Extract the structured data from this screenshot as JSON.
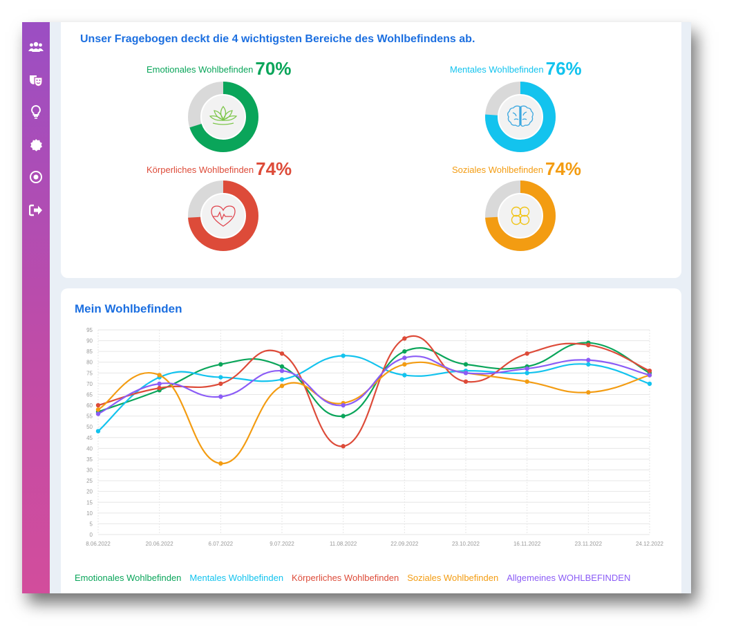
{
  "headline": "Unser Fragebogen deckt die 4 wichtigsten Bereiche des Wohlbefindens ab.",
  "sidebar": {
    "icons": [
      "users-icon",
      "masks-icon",
      "lightbulb-icon",
      "badge-icon",
      "target-icon",
      "sign-out-icon"
    ]
  },
  "gauges": [
    {
      "label": "Emotionales Wohlbefinden",
      "percent": "70%",
      "value": 70,
      "color": "#0aa55a",
      "icon": "lotus-icon"
    },
    {
      "label": "Mentales Wohlbefinden",
      "percent": "76%",
      "value": 76,
      "color": "#13c3ee",
      "icon": "brain-icon"
    },
    {
      "label": "Körperliches Wohlbefinden",
      "percent": "74%",
      "value": 74,
      "color": "#dd4b39",
      "icon": "heart-pulse-icon"
    },
    {
      "label": "Soziales Wohlbefinden",
      "percent": "74%",
      "value": 74,
      "color": "#f39c12",
      "icon": "clover-icon"
    }
  ],
  "chart_title": "Mein Wohlbefinden",
  "chart_data": {
    "type": "line",
    "categories": [
      "8.06.2022",
      "20.06.2022",
      "6.07.2022",
      "9.07.2022",
      "11.08.2022",
      "22.09.2022",
      "23.10.2022",
      "16.11.2022",
      "23.11.2022",
      "24.12.2022"
    ],
    "ylim": [
      0,
      95
    ],
    "yticks": [
      "0",
      "5",
      "10",
      "15",
      "20",
      "25",
      "30",
      "35",
      "40",
      "45",
      "50",
      "55",
      "60",
      "65",
      "70",
      "75",
      "80",
      "85",
      "90",
      "95"
    ],
    "grid": true,
    "legend": "bottom",
    "series": [
      {
        "name": "Emotionales Wohlbefinden",
        "color": "#0aa55a",
        "values": [
          57,
          67,
          79,
          78,
          55,
          85,
          79,
          78,
          89,
          75
        ]
      },
      {
        "name": "Mentales Wohlbefinden",
        "color": "#13c3ee",
        "values": [
          48,
          73,
          73,
          72,
          83,
          74,
          76,
          75,
          79,
          70
        ]
      },
      {
        "name": "Körperliches Wohlbefinden",
        "color": "#dd4b39",
        "values": [
          60,
          68,
          70,
          84,
          41,
          91,
          71,
          84,
          88,
          76
        ]
      },
      {
        "name": "Soziales Wohlbefinden",
        "color": "#f39c12",
        "values": [
          58,
          74,
          33,
          69,
          61,
          79,
          75,
          71,
          66,
          74
        ]
      },
      {
        "name": "Allgemeines WOHLBEFINDEN",
        "color": "#8b5cf6",
        "values": [
          56,
          70,
          64,
          76,
          60,
          82,
          75,
          77,
          81,
          74
        ]
      }
    ]
  }
}
